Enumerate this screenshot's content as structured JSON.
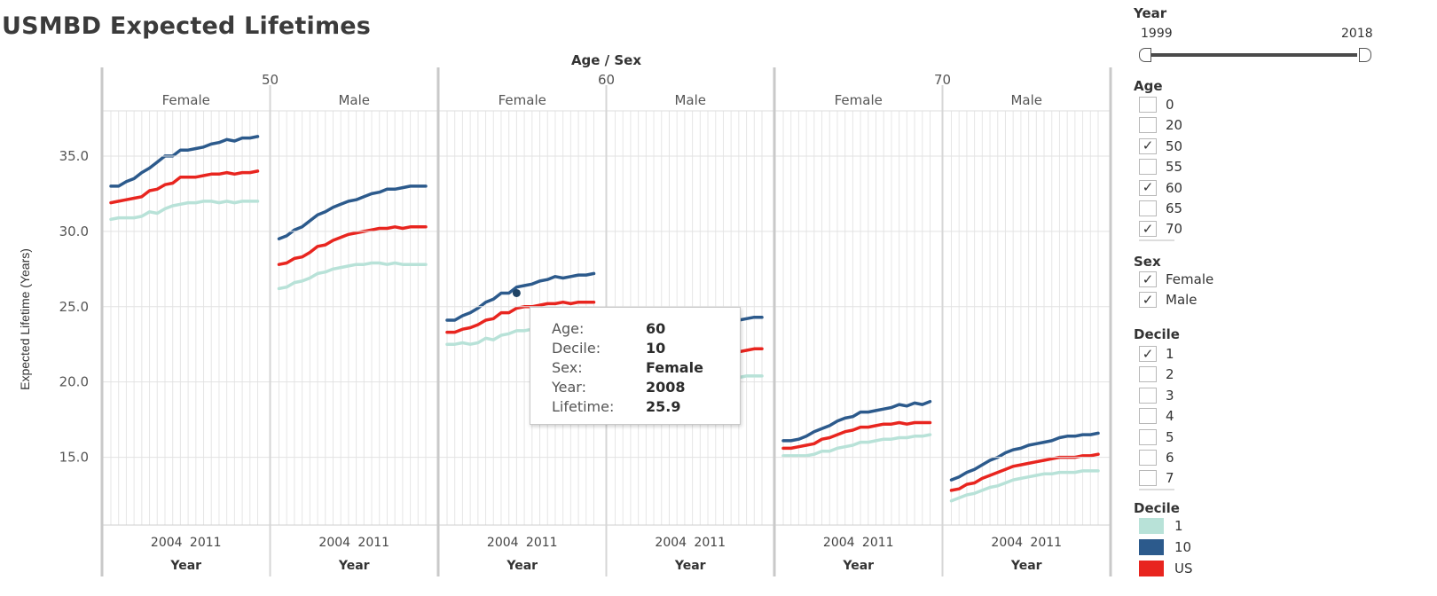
{
  "title": "USMBD Expected Lifetimes",
  "chart_data": {
    "type": "line",
    "top_header": "Age / Sex",
    "ylabel": "Expected Lifetime (Years)",
    "xlabel": "Year",
    "ylim": [
      10.5,
      38
    ],
    "xlim": [
      1999,
      2018
    ],
    "yticks": [
      15.0,
      20.0,
      25.0,
      30.0,
      35.0
    ],
    "xticks": [
      "2004",
      "2011"
    ],
    "grid": true,
    "legend_placement": "right",
    "panels": [
      {
        "age": "50",
        "sex": "Female",
        "series": [
          {
            "name": "10",
            "color": "#2c5a8c",
            "values": [
              33.0,
              33.0,
              33.3,
              33.5,
              33.9,
              34.2,
              34.6,
              35.0,
              35.0,
              35.4,
              35.4,
              35.5,
              35.6,
              35.8,
              35.9,
              36.1,
              36.0,
              36.2,
              36.2,
              36.3
            ]
          },
          {
            "name": "US",
            "color": "#e8251f",
            "values": [
              31.9,
              32.0,
              32.1,
              32.2,
              32.3,
              32.7,
              32.8,
              33.1,
              33.2,
              33.6,
              33.6,
              33.6,
              33.7,
              33.8,
              33.8,
              33.9,
              33.8,
              33.9,
              33.9,
              34.0
            ]
          },
          {
            "name": "1",
            "color": "#b8e2d8",
            "values": [
              30.8,
              30.9,
              30.9,
              30.9,
              31.0,
              31.3,
              31.2,
              31.5,
              31.7,
              31.8,
              31.9,
              31.9,
              32.0,
              32.0,
              31.9,
              32.0,
              31.9,
              32.0,
              32.0,
              32.0
            ]
          }
        ]
      },
      {
        "age": "50",
        "sex": "Male",
        "series": [
          {
            "name": "10",
            "color": "#2c5a8c",
            "values": [
              29.5,
              29.7,
              30.1,
              30.3,
              30.7,
              31.1,
              31.3,
              31.6,
              31.8,
              32.0,
              32.1,
              32.3,
              32.5,
              32.6,
              32.8,
              32.8,
              32.9,
              33.0,
              33.0,
              33.0
            ]
          },
          {
            "name": "US",
            "color": "#e8251f",
            "values": [
              27.8,
              27.9,
              28.2,
              28.3,
              28.6,
              29.0,
              29.1,
              29.4,
              29.6,
              29.8,
              29.9,
              30.0,
              30.1,
              30.2,
              30.2,
              30.3,
              30.2,
              30.3,
              30.3,
              30.3
            ]
          },
          {
            "name": "1",
            "color": "#b8e2d8",
            "values": [
              26.2,
              26.3,
              26.6,
              26.7,
              26.9,
              27.2,
              27.3,
              27.5,
              27.6,
              27.7,
              27.8,
              27.8,
              27.9,
              27.9,
              27.8,
              27.9,
              27.8,
              27.8,
              27.8,
              27.8
            ]
          }
        ]
      },
      {
        "age": "60",
        "sex": "Female",
        "series": [
          {
            "name": "10",
            "color": "#2c5a8c",
            "values": [
              24.1,
              24.1,
              24.4,
              24.6,
              24.9,
              25.3,
              25.5,
              25.9,
              25.9,
              26.3,
              26.4,
              26.5,
              26.7,
              26.8,
              27.0,
              26.9,
              27.0,
              27.1,
              27.1,
              27.2
            ]
          },
          {
            "name": "US",
            "color": "#e8251f",
            "values": [
              23.3,
              23.3,
              23.5,
              23.6,
              23.8,
              24.1,
              24.2,
              24.6,
              24.6,
              24.9,
              25.0,
              25.0,
              25.1,
              25.2,
              25.2,
              25.3,
              25.2,
              25.3,
              25.3,
              25.3
            ]
          },
          {
            "name": "1",
            "color": "#b8e2d8",
            "values": [
              22.5,
              22.5,
              22.6,
              22.5,
              22.6,
              22.9,
              22.8,
              23.1,
              23.2,
              23.4,
              23.4,
              23.5,
              23.5,
              23.5,
              23.5,
              23.6,
              23.5,
              23.6,
              23.6,
              23.6
            ]
          }
        ]
      },
      {
        "age": "60",
        "sex": "Male",
        "series": [
          {
            "name": "10",
            "color": "#2c5a8c",
            "values": [
              20.9,
              21.1,
              21.4,
              21.6,
              21.9,
              22.3,
              22.5,
              22.8,
              23.0,
              23.2,
              23.3,
              23.5,
              23.7,
              23.8,
              24.0,
              24.0,
              24.1,
              24.2,
              24.3,
              24.3
            ]
          },
          {
            "name": "US",
            "color": "#e8251f",
            "values": [
              19.5,
              19.6,
              19.8,
              19.9,
              20.2,
              20.5,
              20.6,
              20.9,
              21.1,
              21.3,
              21.4,
              21.5,
              21.7,
              21.8,
              21.9,
              22.0,
              22.0,
              22.1,
              22.2,
              22.2
            ]
          },
          {
            "name": "1",
            "color": "#b8e2d8",
            "values": [
              18.3,
              18.4,
              18.6,
              18.7,
              18.9,
              19.2,
              19.3,
              19.5,
              19.6,
              19.8,
              19.9,
              20.0,
              20.1,
              20.2,
              20.2,
              20.3,
              20.3,
              20.4,
              20.4,
              20.4
            ]
          }
        ]
      },
      {
        "age": "70",
        "sex": "Female",
        "series": [
          {
            "name": "10",
            "color": "#2c5a8c",
            "values": [
              16.1,
              16.1,
              16.2,
              16.4,
              16.7,
              16.9,
              17.1,
              17.4,
              17.6,
              17.7,
              18.0,
              18.0,
              18.1,
              18.2,
              18.3,
              18.5,
              18.4,
              18.6,
              18.5,
              18.7
            ]
          },
          {
            "name": "US",
            "color": "#e8251f",
            "values": [
              15.6,
              15.6,
              15.7,
              15.8,
              15.9,
              16.2,
              16.3,
              16.5,
              16.7,
              16.8,
              17.0,
              17.0,
              17.1,
              17.2,
              17.2,
              17.3,
              17.2,
              17.3,
              17.3,
              17.3
            ]
          },
          {
            "name": "1",
            "color": "#b8e2d8",
            "values": [
              15.1,
              15.1,
              15.1,
              15.1,
              15.2,
              15.4,
              15.4,
              15.6,
              15.7,
              15.8,
              16.0,
              16.0,
              16.1,
              16.2,
              16.2,
              16.3,
              16.3,
              16.4,
              16.4,
              16.5
            ]
          }
        ]
      },
      {
        "age": "70",
        "sex": "Male",
        "series": [
          {
            "name": "10",
            "color": "#2c5a8c",
            "values": [
              13.5,
              13.7,
              14.0,
              14.2,
              14.5,
              14.8,
              15.0,
              15.3,
              15.5,
              15.6,
              15.8,
              15.9,
              16.0,
              16.1,
              16.3,
              16.4,
              16.4,
              16.5,
              16.5,
              16.6
            ]
          },
          {
            "name": "US",
            "color": "#e8251f",
            "values": [
              12.8,
              12.9,
              13.2,
              13.3,
              13.6,
              13.8,
              14.0,
              14.2,
              14.4,
              14.5,
              14.6,
              14.7,
              14.8,
              14.9,
              15.0,
              15.0,
              15.0,
              15.1,
              15.1,
              15.2
            ]
          },
          {
            "name": "1",
            "color": "#b8e2d8",
            "values": [
              12.1,
              12.3,
              12.5,
              12.6,
              12.8,
              13.0,
              13.1,
              13.3,
              13.5,
              13.6,
              13.7,
              13.8,
              13.9,
              13.9,
              14.0,
              14.0,
              14.0,
              14.1,
              14.1,
              14.1
            ]
          }
        ]
      }
    ],
    "highlight": {
      "panel": 2,
      "year": 2008,
      "value": 25.9
    }
  },
  "tooltip": {
    "rows": [
      {
        "key": "Age:",
        "value": "60"
      },
      {
        "key": "Decile:",
        "value": "10"
      },
      {
        "key": "Sex:",
        "value": "Female"
      },
      {
        "key": "Year:",
        "value": "2008"
      },
      {
        "key": "Lifetime:",
        "value": "25.9"
      }
    ]
  },
  "sidebar": {
    "year_filter": {
      "title": "Year",
      "min_label": "1999",
      "max_label": "2018"
    },
    "age_filter": {
      "title": "Age",
      "items": [
        {
          "label": "0",
          "checked": false
        },
        {
          "label": "20",
          "checked": false
        },
        {
          "label": "50",
          "checked": true
        },
        {
          "label": "55",
          "checked": false
        },
        {
          "label": "60",
          "checked": true
        },
        {
          "label": "65",
          "checked": false
        },
        {
          "label": "70",
          "checked": true
        }
      ]
    },
    "sex_filter": {
      "title": "Sex",
      "items": [
        {
          "label": "Female",
          "checked": true
        },
        {
          "label": "Male",
          "checked": true
        }
      ]
    },
    "decile_filter": {
      "title": "Decile",
      "items": [
        {
          "label": "1",
          "checked": true
        },
        {
          "label": "2",
          "checked": false
        },
        {
          "label": "3",
          "checked": false
        },
        {
          "label": "4",
          "checked": false
        },
        {
          "label": "5",
          "checked": false
        },
        {
          "label": "6",
          "checked": false
        },
        {
          "label": "7",
          "checked": false
        }
      ]
    },
    "legend": {
      "title": "Decile",
      "items": [
        {
          "label": "1",
          "color": "#b8e2d8"
        },
        {
          "label": "10",
          "color": "#2c5a8c"
        },
        {
          "label": "US",
          "color": "#e8251f"
        }
      ]
    }
  }
}
